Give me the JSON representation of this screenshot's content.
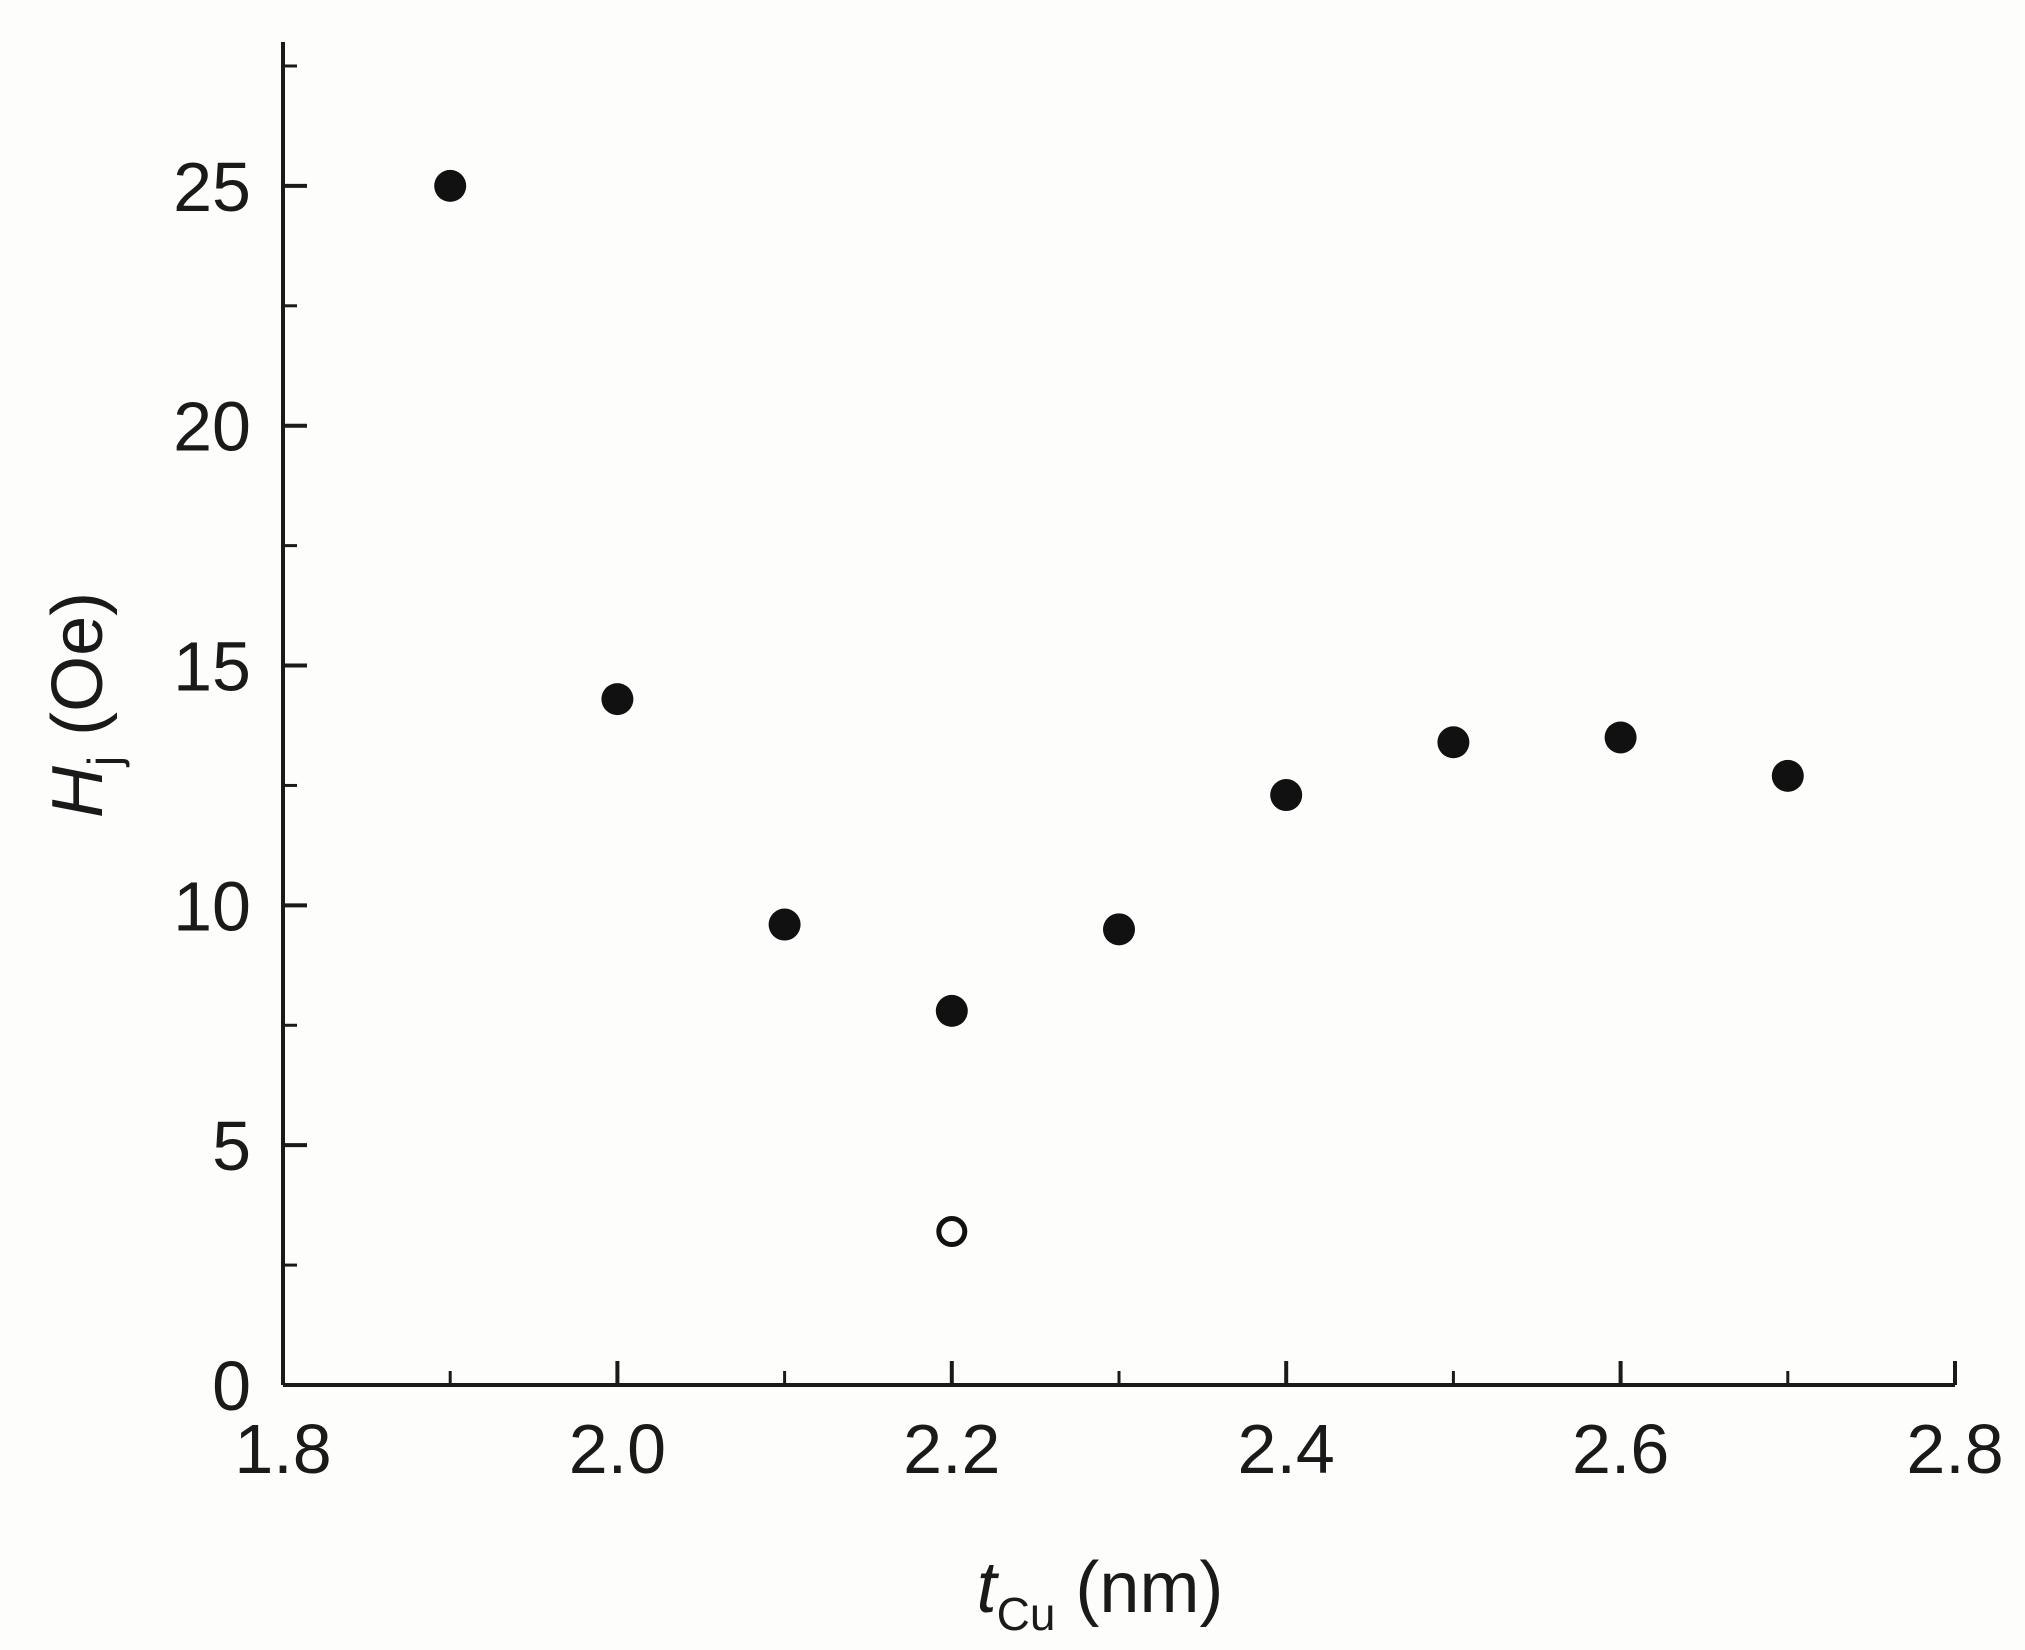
{
  "chart_data": {
    "type": "scatter",
    "title": "",
    "xlabel": {
      "main": "t",
      "sub": "Cu",
      "unit": " (nm)"
    },
    "ylabel": {
      "main": "H",
      "sub": "j",
      "unit": " (Oe)"
    },
    "xlim": [
      1.8,
      2.8
    ],
    "ylim": [
      0,
      28
    ],
    "x_ticks": [
      "1.8",
      "2.0",
      "2.2",
      "2.4",
      "2.6",
      "2.8"
    ],
    "y_ticks": [
      "0",
      "5",
      "10",
      "15",
      "20",
      "25"
    ],
    "grid": false,
    "series": [
      {
        "marker": "filled-circle",
        "color": "#111111",
        "points": [
          [
            1.9,
            25.0
          ],
          [
            2.0,
            14.3
          ],
          [
            2.1,
            9.6
          ],
          [
            2.2,
            7.8
          ],
          [
            2.3,
            9.5
          ],
          [
            2.4,
            12.3
          ],
          [
            2.5,
            13.4
          ],
          [
            2.6,
            13.5
          ],
          [
            2.7,
            12.7
          ]
        ]
      },
      {
        "marker": "open-circle",
        "color": "#111111",
        "points": [
          [
            2.2,
            3.2
          ]
        ]
      }
    ]
  }
}
